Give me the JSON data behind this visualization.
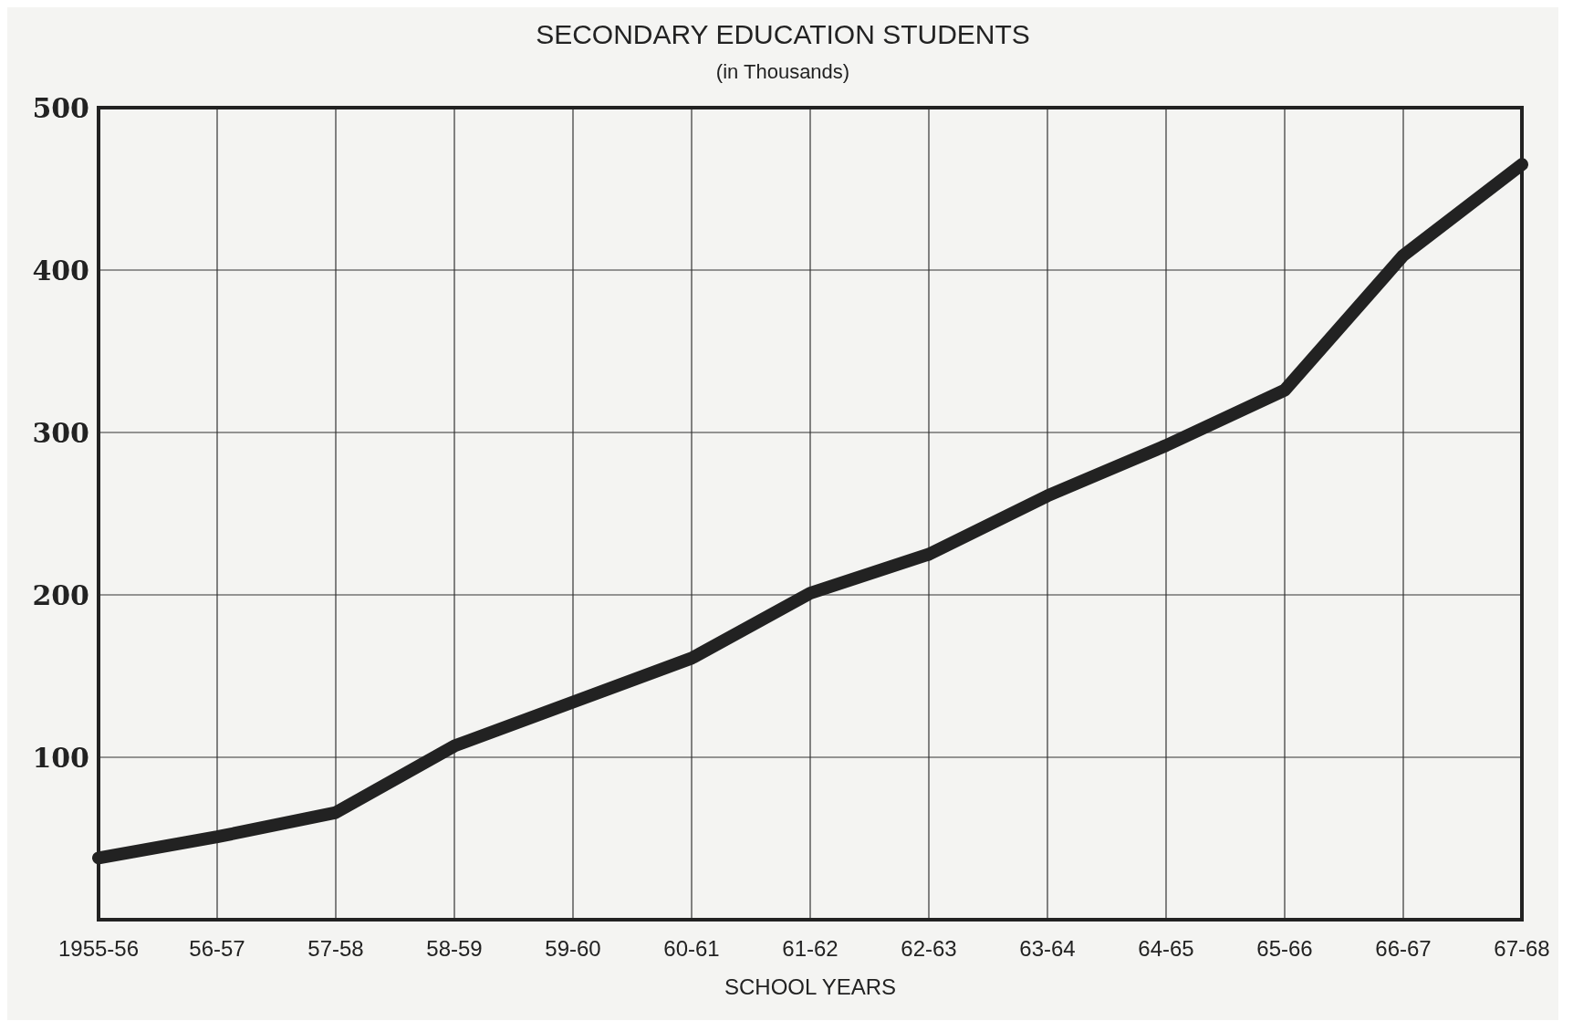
{
  "chart_data": {
    "type": "line",
    "title": "SECONDARY EDUCATION STUDENTS",
    "subtitle": "(in Thousands)",
    "xlabel": "SCHOOL YEARS",
    "categories": [
      "1955-56",
      "56-57",
      "57-58",
      "58-59",
      "59-60",
      "60-61",
      "61-62",
      "62-63",
      "63-64",
      "64-65",
      "65-66",
      "66-67",
      "67-68"
    ],
    "series": [
      {
        "color": "#222222",
        "values": [
          38,
          51,
          66,
          107,
          134,
          161,
          201,
          225,
          261,
          292,
          326,
          409,
          465
        ]
      }
    ],
    "ylim": [
      0,
      500
    ],
    "yticks": [
      {
        "value": 0,
        "label": null
      },
      100,
      200,
      300,
      400,
      500
    ],
    "grid": true,
    "marker": "none",
    "line_style": "solid"
  }
}
